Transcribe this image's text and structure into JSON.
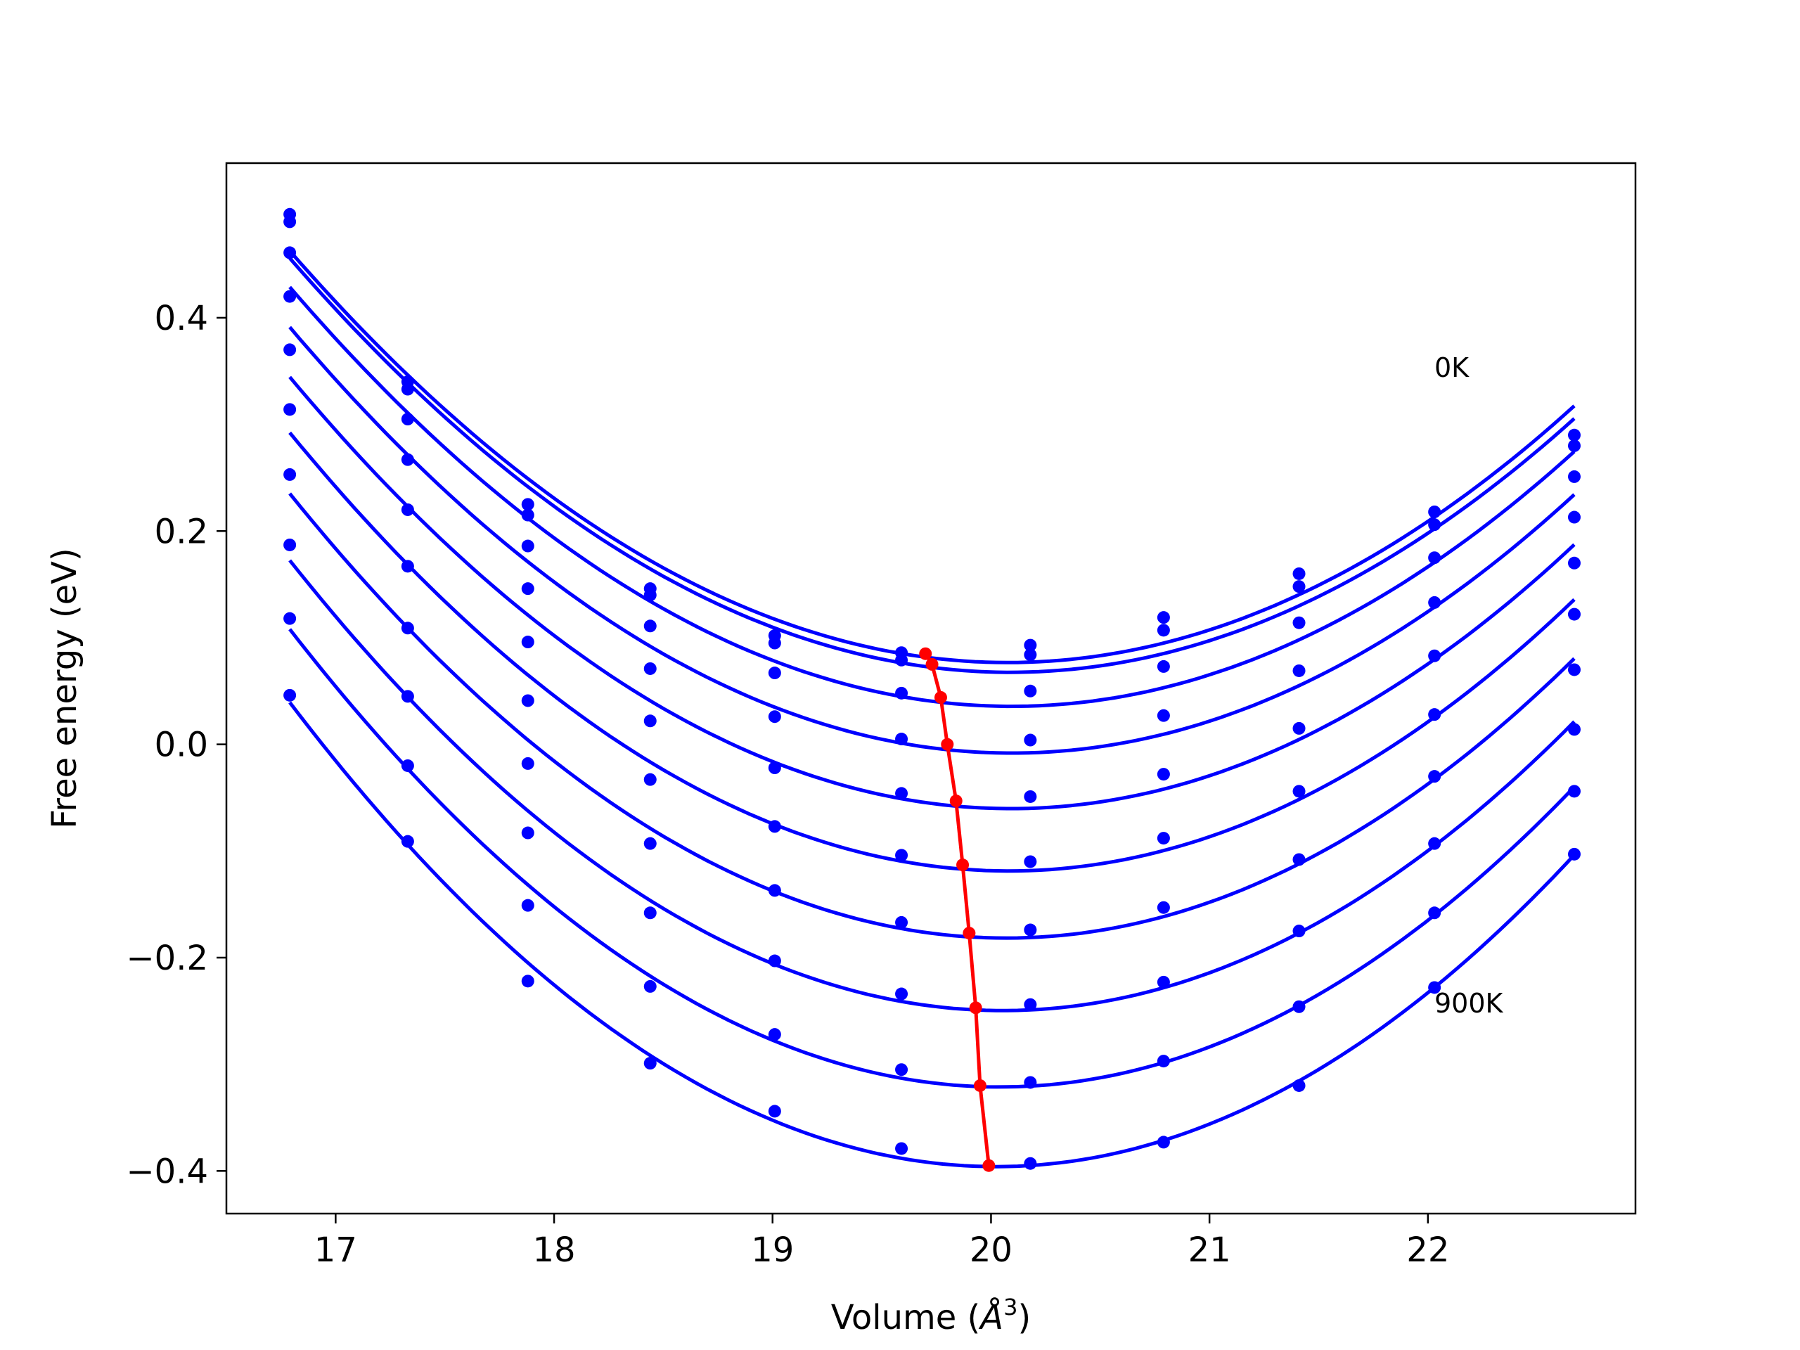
{
  "chart_data": {
    "type": "scatter",
    "xlabel_prefix": "Volume (",
    "xlabel_symbol": "Å",
    "xlabel_exp": "3",
    "xlabel_suffix": ")",
    "ylabel": "Free energy (eV)",
    "xlim": [
      16.5,
      22.95
    ],
    "ylim": [
      -0.44,
      0.545
    ],
    "xticks": [
      17,
      18,
      19,
      20,
      21,
      22
    ],
    "xtick_labels": [
      "17",
      "18",
      "19",
      "20",
      "21",
      "22"
    ],
    "yticks": [
      -0.4,
      -0.2,
      0.0,
      0.2,
      0.4
    ],
    "ytick_labels": [
      "−0.4",
      "−0.2",
      "0.0",
      "0.2",
      "0.4"
    ],
    "grid": false,
    "annotations": [
      {
        "text": "0K",
        "x": 22.04,
        "y": 0.345
      },
      {
        "text": "900K",
        "x": 22.04,
        "y": -0.25
      }
    ],
    "colors": {
      "isotherms": "#0000ff",
      "minima": "#ff0000"
    },
    "volumes": [
      16.79,
      17.33,
      17.88,
      18.44,
      19.01,
      19.59,
      20.18,
      20.79,
      21.41,
      22.03,
      22.67
    ],
    "series": [
      {
        "color": "#0000ff",
        "values": [
          0.497,
          0.34,
          0.225,
          0.146,
          0.102,
          0.086,
          0.093,
          0.119,
          0.16,
          0.218,
          0.29
        ]
      },
      {
        "color": "#0000ff",
        "values": [
          0.49,
          0.333,
          0.215,
          0.14,
          0.095,
          0.079,
          0.084,
          0.107,
          0.148,
          0.206,
          0.28
        ]
      },
      {
        "color": "#0000ff",
        "values": [
          0.461,
          0.305,
          0.186,
          0.111,
          0.067,
          0.048,
          0.05,
          0.073,
          0.114,
          0.175,
          0.251
        ]
      },
      {
        "color": "#0000ff",
        "values": [
          0.42,
          0.267,
          0.146,
          0.071,
          0.026,
          0.005,
          0.004,
          0.027,
          0.069,
          0.133,
          0.213
        ]
      },
      {
        "color": "#0000ff",
        "values": [
          0.37,
          0.22,
          0.096,
          0.022,
          -0.022,
          -0.046,
          -0.049,
          -0.028,
          0.015,
          0.083,
          0.17
        ]
      },
      {
        "color": "#0000ff",
        "values": [
          0.314,
          0.167,
          0.041,
          -0.033,
          -0.077,
          -0.104,
          -0.11,
          -0.088,
          -0.044,
          0.028,
          0.122
        ]
      },
      {
        "color": "#0000ff",
        "values": [
          0.253,
          0.109,
          -0.018,
          -0.093,
          -0.137,
          -0.167,
          -0.174,
          -0.153,
          -0.108,
          -0.03,
          0.07
        ]
      },
      {
        "color": "#0000ff",
        "values": [
          0.187,
          0.045,
          -0.083,
          -0.158,
          -0.203,
          -0.234,
          -0.244,
          -0.223,
          -0.175,
          -0.093,
          0.014
        ]
      },
      {
        "color": "#0000ff",
        "values": [
          0.118,
          -0.02,
          -0.151,
          -0.227,
          -0.272,
          -0.305,
          -0.317,
          -0.297,
          -0.246,
          -0.158,
          -0.044
        ]
      },
      {
        "color": "#0000ff",
        "values": [
          0.046,
          -0.091,
          -0.222,
          -0.299,
          -0.344,
          -0.379,
          -0.393,
          -0.373,
          -0.32,
          -0.228,
          -0.103
        ]
      }
    ],
    "minima": {
      "color": "#ff0000",
      "x": [
        19.7,
        19.73,
        19.77,
        19.8,
        19.84,
        19.87,
        19.9,
        19.93,
        19.95,
        19.99
      ],
      "y": [
        0.085,
        0.075,
        0.044,
        0.0,
        -0.053,
        -0.113,
        -0.177,
        -0.247,
        -0.32,
        -0.395
      ]
    }
  }
}
